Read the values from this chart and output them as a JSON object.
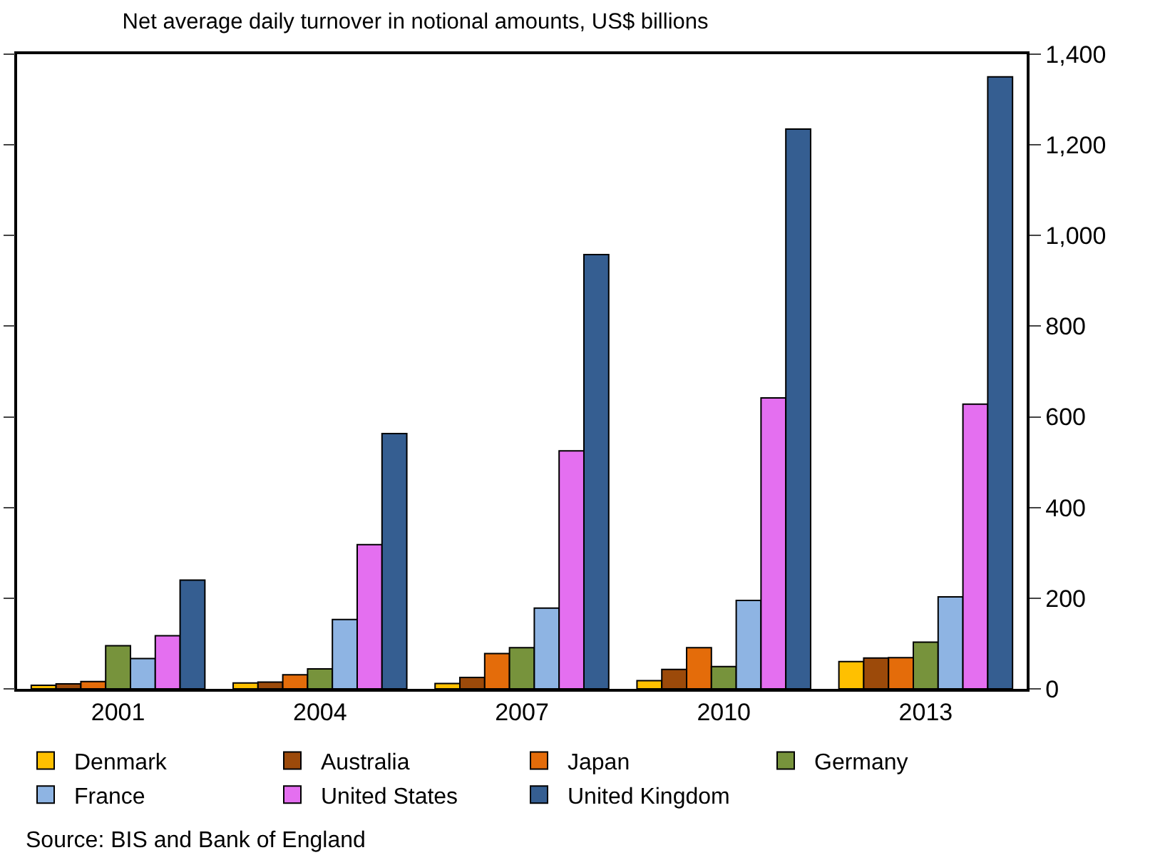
{
  "chart_data": {
    "type": "bar",
    "title": "Net average daily turnover in notional amounts, US$ billions",
    "categories": [
      "2001",
      "2004",
      "2007",
      "2010",
      "2013"
    ],
    "series": [
      {
        "name": "Denmark",
        "color": "#ffc000",
        "values": [
          8,
          13,
          12,
          18,
          60
        ]
      },
      {
        "name": "Australia",
        "color": "#9c4a0a",
        "values": [
          11,
          15,
          25,
          43,
          68
        ]
      },
      {
        "name": "Japan",
        "color": "#e46c0a",
        "values": [
          16,
          31,
          78,
          91,
          69
        ]
      },
      {
        "name": "Germany",
        "color": "#77933c",
        "values": [
          95,
          44,
          91,
          49,
          103
        ]
      },
      {
        "name": "France",
        "color": "#8eb4e3",
        "values": [
          67,
          153,
          178,
          195,
          203
        ]
      },
      {
        "name": "United States",
        "color": "#e46ff0",
        "values": [
          117,
          318,
          525,
          642,
          628
        ]
      },
      {
        "name": "United Kingdom",
        "color": "#355e91",
        "values": [
          240,
          563,
          958,
          1235,
          1350
        ]
      }
    ],
    "ylim": [
      0,
      1400
    ],
    "yticks": [
      0,
      200,
      400,
      600,
      800,
      {
        "value": 1000,
        "label": "1,000"
      },
      {
        "value": 1200,
        "label": "1,200"
      },
      {
        "value": 1400,
        "label": "1,400"
      }
    ],
    "legend": "bottom",
    "annotations": [
      "Source: BIS and Bank of England"
    ]
  }
}
